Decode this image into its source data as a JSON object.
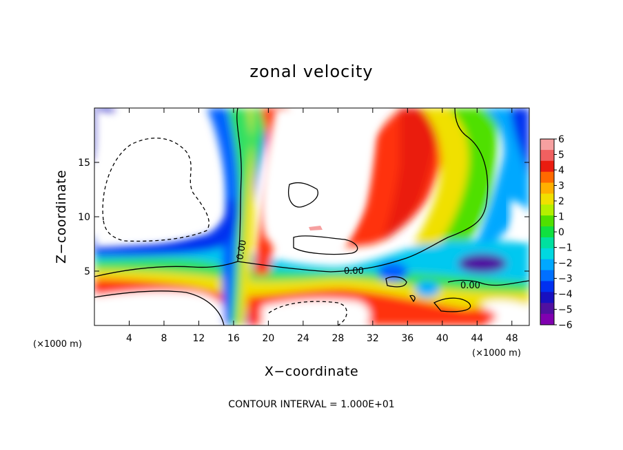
{
  "chart_data": {
    "type": "heatmap",
    "title": "zonal velocity",
    "xlabel": "X−coordinate",
    "ylabel": "Z−coordinate",
    "x_unit_left": "(×1000 m)",
    "x_unit_right": "(×1000 m)",
    "xlim": [
      0,
      50
    ],
    "ylim": [
      0,
      20
    ],
    "x_ticks": [
      4,
      8,
      12,
      16,
      20,
      24,
      28,
      32,
      36,
      40,
      44,
      48
    ],
    "y_ticks": [
      5,
      10,
      15
    ],
    "colorbar": {
      "min": -6,
      "max": 6,
      "labels": [
        "6",
        "5",
        "4",
        "3",
        "2",
        "1",
        "0",
        "−1",
        "−2",
        "−3",
        "−4",
        "−5",
        "−6"
      ],
      "colors": [
        "#f6a0a0",
        "#f06060",
        "#ea1c10",
        "#ff6a00",
        "#ffb000",
        "#f0e000",
        "#b4f000",
        "#50e000",
        "#10e040",
        "#00e0a0",
        "#00d8e0",
        "#00a8ff",
        "#0070ff",
        "#0030f0",
        "#1810c0",
        "#5010a0",
        "#8000b0"
      ]
    },
    "contour_labels": [
      {
        "text": "0.00",
        "x": 14,
        "z": 7.3
      },
      {
        "text": "0.00",
        "x": 30,
        "z": 5.0
      },
      {
        "text": "0.00",
        "x": 42.4,
        "z": 3.7
      }
    ],
    "footer": "CONTOUR INTERVAL = 1.000E+01"
  }
}
